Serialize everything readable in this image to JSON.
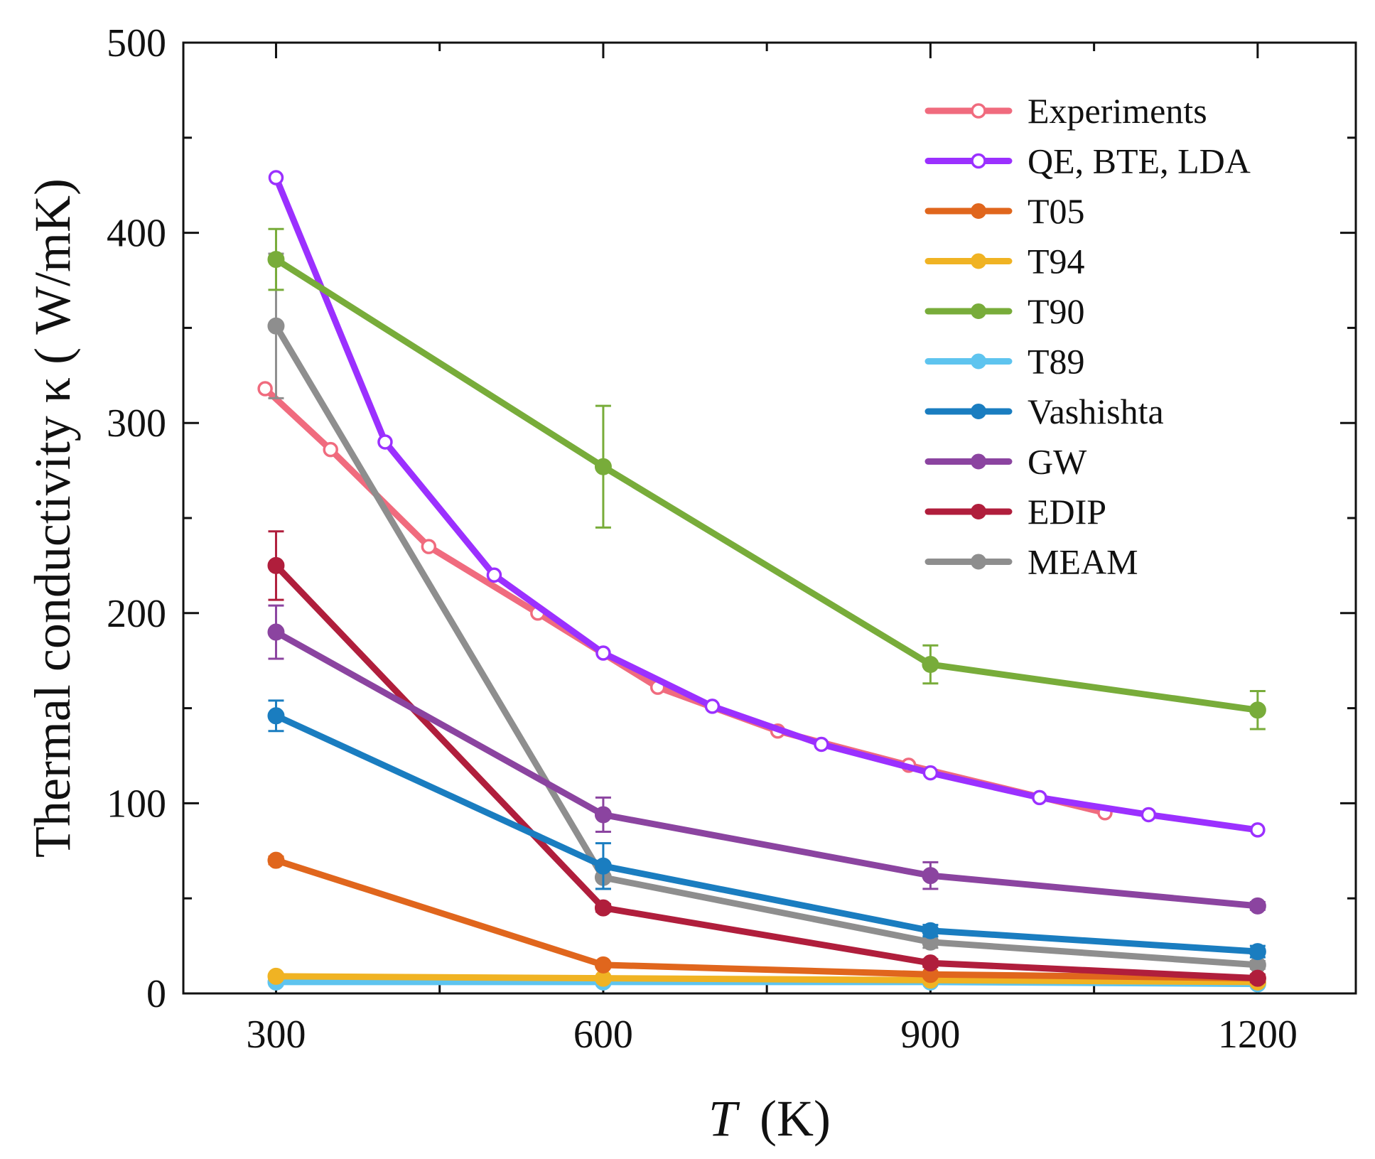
{
  "chart_data": {
    "type": "line",
    "title": "",
    "xlabel": "T",
    "xlabel_unit": "(K)",
    "ylabel": "Thermal conductivity κ ( W/mK)",
    "xlim": [
      215,
      1290
    ],
    "ylim": [
      0,
      500
    ],
    "xticks": [
      300,
      600,
      900,
      1200
    ],
    "yticks": [
      0,
      100,
      200,
      300,
      400,
      500
    ],
    "xtick_labels": [
      "300",
      "600",
      "900",
      "1200"
    ],
    "ytick_labels": [
      "0",
      "100",
      "200",
      "300",
      "400",
      "500"
    ],
    "legend_position": "top-right",
    "series": [
      {
        "name": "Experiments",
        "color": "#f06b7e",
        "marker": "open-circle",
        "x": [
          290,
          350,
          440,
          540,
          650,
          760,
          880,
          1060
        ],
        "y": [
          318,
          286,
          235,
          200,
          161,
          138,
          120,
          95
        ],
        "err": []
      },
      {
        "name": "QE, BTE, LDA",
        "color": "#9b30ff",
        "marker": "open-circle",
        "x": [
          300,
          400,
          500,
          600,
          700,
          800,
          900,
          1000,
          1100,
          1200
        ],
        "y": [
          429,
          290,
          220,
          179,
          151,
          131,
          116,
          103,
          94,
          86
        ],
        "err": []
      },
      {
        "name": "T05",
        "color": "#e0661d",
        "marker": "filled-circle",
        "x": [
          300,
          600,
          900,
          1200
        ],
        "y": [
          70,
          15,
          10,
          8
        ],
        "err": [
          2,
          1,
          1,
          1
        ]
      },
      {
        "name": "T94",
        "color": "#f0b323",
        "marker": "filled-circle",
        "x": [
          300,
          600,
          900,
          1200
        ],
        "y": [
          9,
          8,
          7,
          6
        ],
        "err": [
          0,
          0,
          0,
          0
        ]
      },
      {
        "name": "T90",
        "color": "#78ac3a",
        "marker": "filled-circle",
        "x": [
          300,
          600,
          900,
          1200
        ],
        "y": [
          386,
          277,
          173,
          149
        ],
        "err": [
          16,
          32,
          10,
          10
        ]
      },
      {
        "name": "T89",
        "color": "#5ec4ef",
        "marker": "filled-circle",
        "x": [
          300,
          600,
          900,
          1200
        ],
        "y": [
          6,
          6,
          6,
          5
        ],
        "err": [
          0,
          0,
          0,
          0
        ]
      },
      {
        "name": "Vashishta",
        "color": "#1a7dc0",
        "marker": "filled-circle",
        "x": [
          300,
          600,
          900,
          1200
        ],
        "y": [
          146,
          67,
          33,
          22
        ],
        "err": [
          8,
          12,
          3,
          3
        ]
      },
      {
        "name": "GW",
        "color": "#8b44a0",
        "marker": "filled-circle",
        "x": [
          300,
          600,
          900,
          1200
        ],
        "y": [
          190,
          94,
          62,
          46
        ],
        "err": [
          14,
          9,
          7,
          2
        ]
      },
      {
        "name": "EDIP",
        "color": "#b01e3c",
        "marker": "filled-circle",
        "x": [
          300,
          600,
          900,
          1200
        ],
        "y": [
          225,
          45,
          16,
          8
        ],
        "err": [
          18,
          2,
          2,
          2
        ]
      },
      {
        "name": "MEAM",
        "color": "#8e8e8e",
        "marker": "filled-circle",
        "x": [
          300,
          600,
          900,
          1200
        ],
        "y": [
          351,
          61,
          27,
          15
        ],
        "err": [
          38,
          6,
          3,
          2
        ]
      }
    ]
  }
}
